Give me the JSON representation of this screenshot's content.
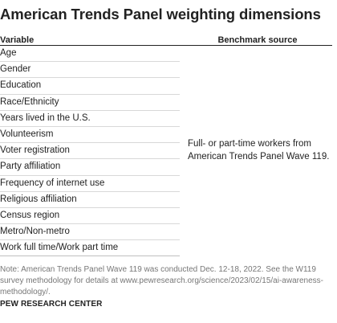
{
  "title": "American Trends Panel weighting dimensions",
  "table": {
    "headers": {
      "variable": "Variable",
      "benchmark": "Benchmark source"
    },
    "variables": [
      "Age",
      "Gender",
      "Education",
      "Race/Ethnicity",
      "Years lived in the U.S.",
      "Volunteerism",
      "Voter registration",
      "Party affiliation",
      "Frequency of internet use",
      "Religious affiliation",
      "Census region",
      "Metro/Non-metro",
      "Work full time/Work part time"
    ],
    "benchmark_source": "Full- or part-time workers from American Trends Panel Wave 119."
  },
  "note": "Note: American Trends Panel Wave 119 was conducted Dec. 12-18, 2022. See the W119 survey methodology for details at www.pewresearch.org/science/2023/02/15/ai-awareness-methodology/.",
  "source_org": "PEW RESEARCH CENTER"
}
